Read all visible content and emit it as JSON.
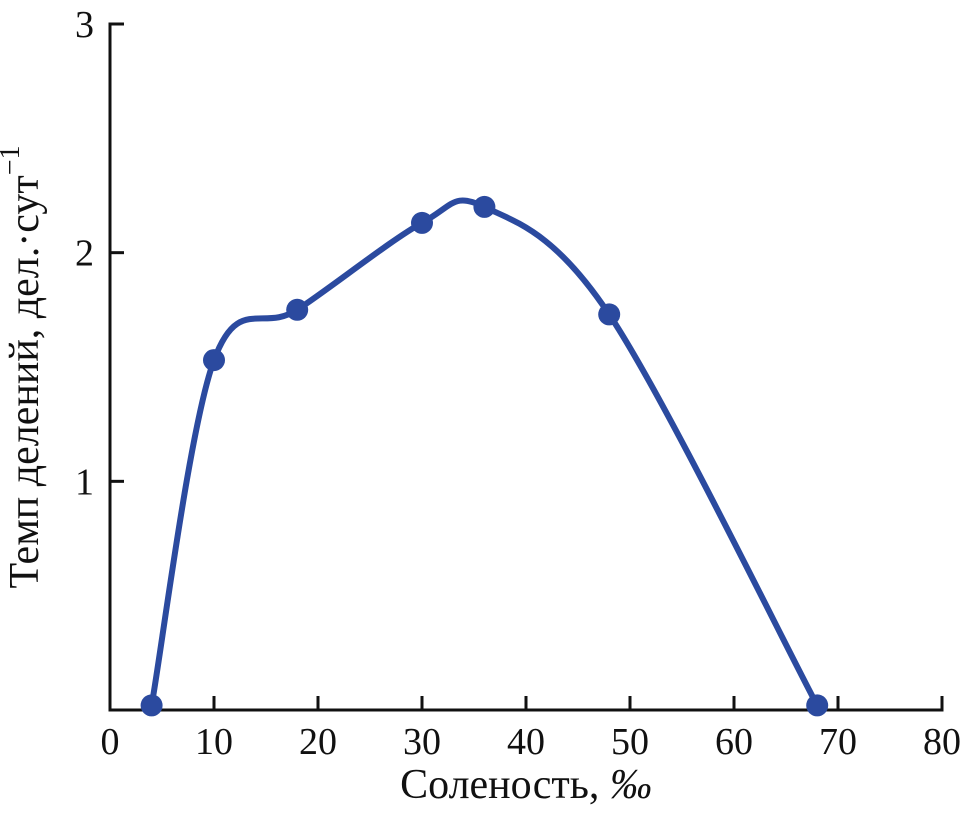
{
  "chart_data": {
    "type": "line",
    "title": "",
    "xlabel": "Соленость, ‰",
    "ylabel": "Темп делений, дел.·сут",
    "ylabel_superscript": "−1",
    "x": [
      4,
      10,
      18,
      30,
      36,
      48,
      68
    ],
    "y": [
      0.02,
      1.53,
      1.75,
      2.13,
      2.2,
      1.73,
      0.02
    ],
    "xlim": [
      0,
      80
    ],
    "ylim": [
      0,
      3
    ],
    "xticks": [
      0,
      10,
      20,
      30,
      40,
      50,
      60,
      70,
      80
    ],
    "yticks": [
      1,
      2,
      3
    ],
    "grid": false,
    "legend": "none",
    "smooth": true,
    "marker": "circle",
    "line_color": "#2b4a9f",
    "marker_color": "#2b4a9f",
    "axis_color": "#111111",
    "background_color": "#ffffff"
  }
}
